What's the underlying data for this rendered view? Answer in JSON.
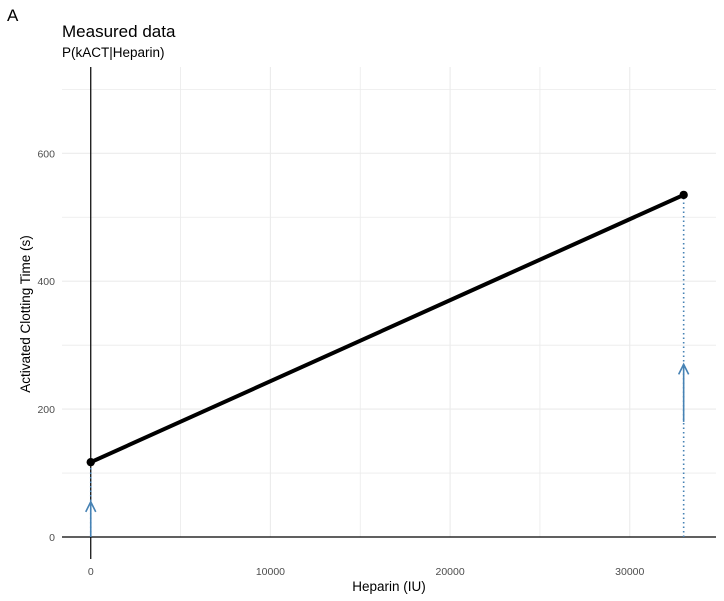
{
  "figure": {
    "panel_tag": "A"
  },
  "chart_data": {
    "type": "line",
    "title": "Measured data",
    "subtitle": "P(kACT|Heparin)",
    "xlabel": "Heparin (IU)",
    "ylabel": "Activated Clotting Time (s)",
    "xlim": [
      -1600,
      34800
    ],
    "ylim": [
      0,
      735
    ],
    "x_ticks": [
      0,
      10000,
      20000,
      30000
    ],
    "x_tick_labels": [
      "0",
      "10000",
      "20000",
      "30000"
    ],
    "y_ticks": [
      0,
      200,
      400,
      600
    ],
    "y_tick_labels": [
      "0",
      "200",
      "400",
      "600"
    ],
    "grid": true,
    "series": [
      {
        "x": [
          0,
          33000
        ],
        "y": [
          117,
          535
        ]
      }
    ],
    "dotted_lines": [
      {
        "x": 0,
        "y_from": 0,
        "y_to": 117
      },
      {
        "x": 33000,
        "y_from": 0,
        "y_to": 535
      }
    ],
    "arrows": [
      {
        "x": 0,
        "y_from": 0,
        "y_to": 55
      },
      {
        "x": 33000,
        "y_from": 180,
        "y_to": 270
      }
    ],
    "colors": {
      "line": "#000000",
      "arrow": "#4682b4",
      "grid": "#ebebeb"
    }
  }
}
